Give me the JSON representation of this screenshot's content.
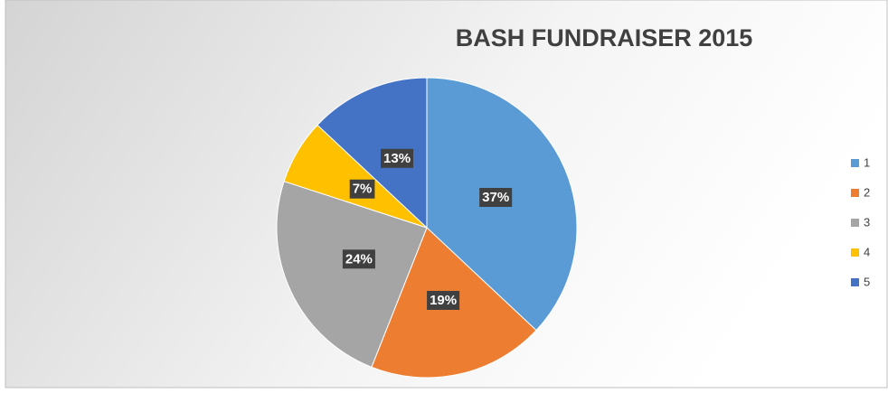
{
  "chart_data": {
    "type": "pie",
    "title": "BASH FUNDRAISER 2015",
    "categories": [
      "1",
      "2",
      "3",
      "4",
      "5"
    ],
    "values": [
      37,
      19,
      24,
      7,
      13
    ],
    "value_labels": [
      "37%",
      "19%",
      "24%",
      "7%",
      "13%"
    ],
    "colors": [
      "#5b9bd5",
      "#ed7d31",
      "#a5a5a5",
      "#ffc000",
      "#4472c4"
    ],
    "legend": "right"
  }
}
